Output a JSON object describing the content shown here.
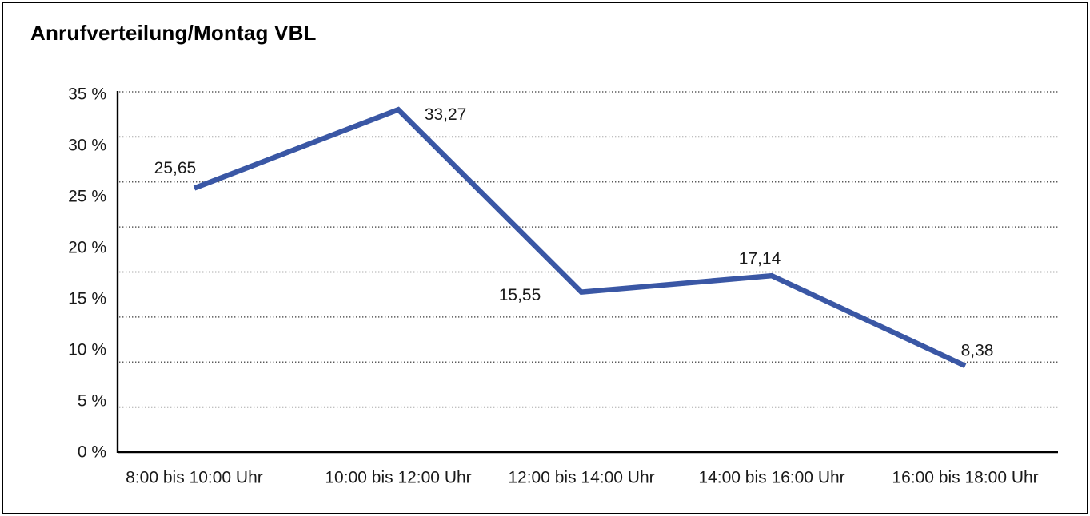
{
  "title": "Anrufverteilung/Montag VBL",
  "chart_data": {
    "type": "line",
    "title": "Anrufverteilung/Montag VBL",
    "categories": [
      "8:00 bis 10:00 Uhr",
      "10:00 bis 12:00 Uhr",
      "12:00 bis 14:00 Uhr",
      "14:00 bis 16:00 Uhr",
      "16:00 bis 18:00 Uhr"
    ],
    "values": [
      25.65,
      33.27,
      15.55,
      17.14,
      8.38
    ],
    "data_labels": [
      "25,65",
      "33,27",
      "15,55",
      "17,14",
      "8,38"
    ],
    "xlabel": "",
    "ylabel": "",
    "unit": "%",
    "ylim": [
      0,
      35
    ],
    "ytick_labels": [
      "35 %",
      "30 %",
      "25 %",
      "20 %",
      "15 %",
      "10 %",
      "5 %",
      "0 %"
    ],
    "grid": "horizontal-dotted",
    "gridline_count": 9,
    "legend": "none",
    "line_color": "#3A57A5",
    "axis_color": "#000000",
    "grid_color": "#5a5a5a",
    "text_color": "#1a1a1a"
  }
}
